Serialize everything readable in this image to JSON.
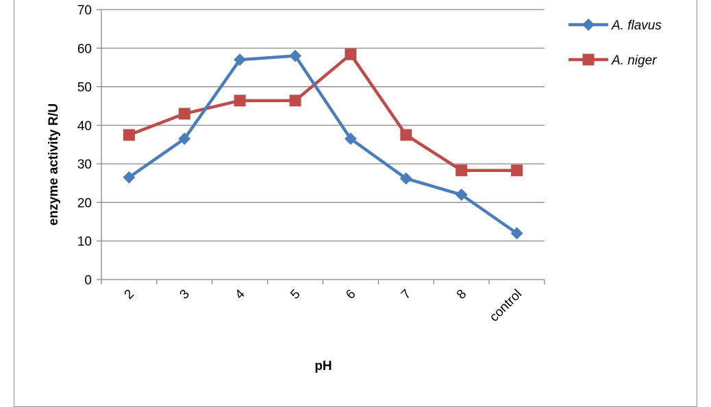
{
  "chart_data": {
    "type": "line",
    "categories": [
      "2",
      "3",
      "4",
      "5",
      "6",
      "7",
      "8",
      "control"
    ],
    "series": [
      {
        "name": "A. flavus",
        "values": [
          26.5,
          36.5,
          57,
          58,
          36.5,
          26.2,
          22,
          12
        ],
        "color": "#4a7ebb",
        "marker": "diamond"
      },
      {
        "name": "A. niger",
        "values": [
          37.5,
          43,
          46.4,
          46.4,
          58.4,
          37.5,
          28.3,
          28.3
        ],
        "color": "#be4b48",
        "marker": "square"
      }
    ],
    "xlabel": "pH",
    "ylabel": "enzyme activity  R/U",
    "ylim": [
      0,
      70
    ],
    "yticks": [
      0,
      10,
      20,
      30,
      40,
      50,
      60,
      70
    ],
    "grid": true,
    "legend_position": "right"
  }
}
